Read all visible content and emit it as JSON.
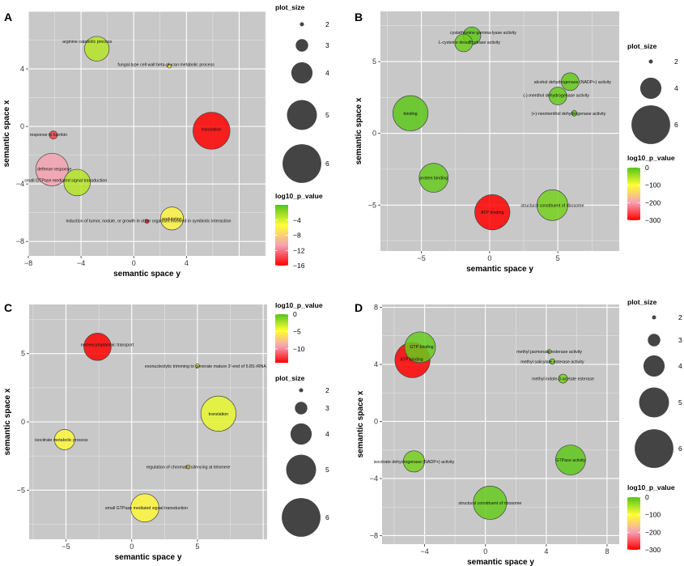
{
  "colors": {
    "scale": [
      "#ff0000",
      "#f5a0b4",
      "#ffff33",
      "#55c41a"
    ],
    "size_circle": "#444444",
    "plot_background": "#c8c8c8",
    "gridline": "#ffffff"
  },
  "chart_data": [
    {
      "type": "scatter",
      "panel": "A",
      "xlabel": "semantic space y",
      "ylabel": "semantic space x",
      "xlim": [
        -8,
        10
      ],
      "ylim": [
        -9,
        8
      ],
      "xticks": [
        -8,
        -4,
        0,
        4
      ],
      "xtick_labels": [
        "−8",
        "−4",
        "0",
        "4"
      ],
      "yticks": [
        -8,
        -4,
        0,
        4
      ],
      "ytick_labels": [
        "−8",
        "−4",
        "0",
        "4"
      ],
      "color_range": [
        -16,
        0
      ],
      "points": [
        {
          "label": "arginine catabolic process",
          "x": -2.8,
          "y": 5.4,
          "plot_size": 4.4,
          "log10_p_value": -3.0
        },
        {
          "label": "fungal-type cell wall beta-glucan metabolic process",
          "x": 2.7,
          "y": 4.2,
          "plot_size": 2.0,
          "log10_p_value": -6.0
        },
        {
          "label": "response to karrikin",
          "x": -6.1,
          "y": -0.6,
          "plot_size": 2.5,
          "log10_p_value": -14.0
        },
        {
          "label": "translation",
          "x": 5.9,
          "y": -0.3,
          "plot_size": 5.8,
          "log10_p_value": -16.0
        },
        {
          "label": "defense response",
          "x": -6.2,
          "y": -3.0,
          "plot_size": 5.3,
          "log10_p_value": -10.5
        },
        {
          "label": "small GTPase mediated signal transduction",
          "x": -4.3,
          "y": -3.9,
          "plot_size": 4.6,
          "log10_p_value": -3.0
        },
        {
          "label": "nodulation",
          "x": 2.9,
          "y": -6.4,
          "plot_size": 4.2,
          "log10_p_value": -6.0
        },
        {
          "label": "induction of tumor, nodule, or growth in other organism involved in symbiotic interaction",
          "x": 1.0,
          "y": -6.6,
          "plot_size": 2.0,
          "log10_p_value": -15.0
        }
      ],
      "legends": {
        "size_title": "plot_size",
        "size_breaks": [
          2,
          3,
          4,
          5,
          6
        ],
        "color_title": "log10_p_value",
        "color_breaks": [
          -4,
          -8,
          -12,
          -16
        ],
        "color_break_labels": [
          "−4",
          "−8",
          "−12",
          "−16"
        ]
      }
    },
    {
      "type": "scatter",
      "panel": "B",
      "xlabel": "semantic space y",
      "ylabel": "semantic space x",
      "xlim": [
        -8,
        9.5
      ],
      "ylim": [
        -8.2,
        8.5
      ],
      "xticks": [
        -5,
        0,
        5
      ],
      "xtick_labels": [
        "−5",
        "0",
        "5"
      ],
      "yticks": [
        -5,
        0,
        5
      ],
      "ytick_labels": [
        "−5",
        "0",
        "5"
      ],
      "color_range": [
        -300,
        0
      ],
      "points": [
        {
          "label": "cystathionine gamma-lyase activity",
          "x": -1.3,
          "y": 6.8,
          "plot_size": 3.6,
          "log10_p_value": -5
        },
        {
          "label": "L-cysteine desulfhydrase activity",
          "x": -1.9,
          "y": 6.3,
          "plot_size": 3.6,
          "log10_p_value": -15
        },
        {
          "label": "alcohol dehydrogenase (NADP+) activity",
          "x": 5.9,
          "y": 3.6,
          "plot_size": 3.6,
          "log10_p_value": -10
        },
        {
          "label": "(-)-menthol dehydrogenase activity",
          "x": 5.0,
          "y": 2.6,
          "plot_size": 3.6,
          "log10_p_value": -12
        },
        {
          "label": "(+)-neomenthol dehydrogenase activity",
          "x": 6.2,
          "y": 1.4,
          "plot_size": 2.2,
          "log10_p_value": -8
        },
        {
          "label": "binding",
          "x": -5.8,
          "y": 1.4,
          "plot_size": 5.6,
          "log10_p_value": -5
        },
        {
          "label": "protein binding",
          "x": -4.1,
          "y": -3.1,
          "plot_size": 4.9,
          "log10_p_value": -10
        },
        {
          "label": "ATP binding",
          "x": 0.2,
          "y": -5.5,
          "plot_size": 5.6,
          "log10_p_value": -300
        },
        {
          "label": "structural constituent of ribosome",
          "x": 4.6,
          "y": -5.0,
          "plot_size": 5.1,
          "log10_p_value": -20
        }
      ],
      "legends": {
        "size_title": "plot_size",
        "size_breaks": [
          2,
          4,
          6
        ],
        "color_title": "log10_p_value",
        "color_breaks": [
          0,
          -100,
          -200,
          -300
        ],
        "color_break_labels": [
          "0",
          "−100",
          "−200",
          "−300"
        ]
      }
    },
    {
      "type": "scatter",
      "panel": "C",
      "xlabel": "semantic space y",
      "ylabel": "semantic space x",
      "xlim": [
        -7.8,
        10.3
      ],
      "ylim": [
        -8.6,
        8.6
      ],
      "xticks": [
        -5,
        0,
        5
      ],
      "xtick_labels": [
        "−5",
        "0",
        "5"
      ],
      "yticks": [
        -5,
        0,
        5
      ],
      "ytick_labels": [
        "−5",
        "0",
        "5"
      ],
      "color_range": [
        -14,
        0
      ],
      "points": [
        {
          "label": "nucleocytoplasmic transport",
          "x": -2.6,
          "y": 5.5,
          "plot_size": 4.7,
          "log10_p_value": -14
        },
        {
          "label": "exonucleolytic trimming to generate mature 3'-end of 5.8S rRNA",
          "x": 5.0,
          "y": 4.1,
          "plot_size": 2.0,
          "log10_p_value": -5
        },
        {
          "label": "translation",
          "x": 6.6,
          "y": 0.6,
          "plot_size": 5.6,
          "log10_p_value": -4
        },
        {
          "label": "isocitrate metabolic process",
          "x": -5.1,
          "y": -1.3,
          "plot_size": 3.9,
          "log10_p_value": -5
        },
        {
          "label": "regulation of chromatin silencing at telomere",
          "x": 4.3,
          "y": -3.3,
          "plot_size": 2.0,
          "log10_p_value": -5
        },
        {
          "label": "small GTPase mediated signal transduction",
          "x": 1.0,
          "y": -6.3,
          "plot_size": 4.8,
          "log10_p_value": -5
        }
      ],
      "legends": {
        "size_title": "plot_size",
        "size_breaks": [
          2,
          3,
          4,
          5,
          6
        ],
        "color_title": "log10_p_value",
        "color_breaks": [
          0,
          -5,
          -10
        ],
        "color_break_labels": [
          "0",
          "−5",
          "−10"
        ]
      }
    },
    {
      "type": "scatter",
      "panel": "D",
      "xlabel": "semantic space y",
      "ylabel": "semantic space x",
      "xlim": [
        -6.8,
        8.8
      ],
      "ylim": [
        -8.6,
        8.2
      ],
      "xticks": [
        -4,
        0,
        4,
        8
      ],
      "xtick_labels": [
        "−4",
        "0",
        "4",
        "8"
      ],
      "yticks": [
        -8,
        -4,
        0,
        4,
        8
      ],
      "ytick_labels": [
        "−8",
        "−4",
        "0",
        "4",
        "8"
      ],
      "color_range": [
        -300,
        0
      ],
      "points": [
        {
          "label": "GTP binding",
          "x": -4.3,
          "y": 5.2,
          "plot_size": 5.1,
          "log10_p_value": -10
        },
        {
          "label": "ATP binding",
          "x": -4.8,
          "y": 4.3,
          "plot_size": 5.6,
          "log10_p_value": -300
        },
        {
          "label": "methyl jasmonate esterase activity",
          "x": 4.2,
          "y": 4.9,
          "plot_size": 2.0,
          "log10_p_value": -20
        },
        {
          "label": "methyl salicylate esterase activity",
          "x": 4.4,
          "y": 4.2,
          "plot_size": 2.2,
          "log10_p_value": -20
        },
        {
          "label": "methyl indole-3-acetate esterase",
          "x": 5.1,
          "y": 3.0,
          "plot_size": 2.6,
          "log10_p_value": -20
        },
        {
          "label": "isocitrate dehydrogenase (NADP+) activity",
          "x": -4.7,
          "y": -2.8,
          "plot_size": 4.0,
          "log10_p_value": -20
        },
        {
          "label": "GTPase activity",
          "x": 5.6,
          "y": -2.7,
          "plot_size": 5.0,
          "log10_p_value": -5
        },
        {
          "label": "structural constituent of ribosome",
          "x": 0.3,
          "y": -5.7,
          "plot_size": 5.4,
          "log10_p_value": -10
        }
      ],
      "legends": {
        "size_title": "plot_size",
        "size_breaks": [
          2,
          3,
          4,
          5,
          6
        ],
        "color_title": "log10_p_value",
        "color_breaks": [
          0,
          -100,
          -200,
          -300
        ],
        "color_break_labels": [
          "0",
          "−100",
          "−200",
          "−300"
        ]
      }
    }
  ]
}
